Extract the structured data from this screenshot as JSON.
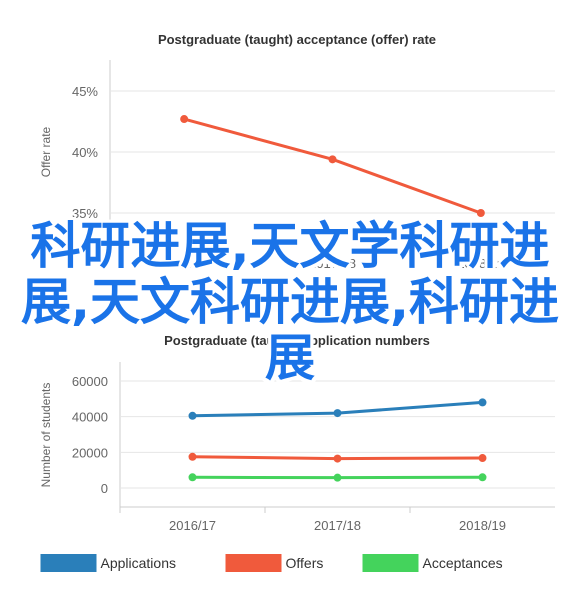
{
  "chart_data": [
    {
      "type": "line",
      "title": "Postgraduate (taught) acceptance (offer) rate",
      "ylabel": "Offer rate",
      "xlabel": "",
      "categories": [
        "2016/17",
        "2017/18",
        "2018/19"
      ],
      "yticks": [
        "35%",
        "40%",
        "45%"
      ],
      "ylim": [
        35,
        45
      ],
      "series": [
        {
          "name": "",
          "values": [
            42.7,
            39.4,
            35.0
          ],
          "color": "#f05a3c"
        }
      ]
    },
    {
      "type": "line",
      "title": "Postgraduate (taught) application numbers",
      "ylabel": "Number of students",
      "xlabel": "",
      "categories": [
        "2016/17",
        "2017/18",
        "2018/19"
      ],
      "yticks": [
        "0",
        "20000",
        "40000",
        "60000"
      ],
      "ylim": [
        0,
        60000
      ],
      "legend": "bottom",
      "series": [
        {
          "name": "Applications",
          "values": [
            40500,
            42000,
            48000
          ],
          "color": "#2a7fba"
        },
        {
          "name": "Offers",
          "values": [
            17500,
            16500,
            16800
          ],
          "color": "#f05a3c"
        },
        {
          "name": "Acceptances",
          "values": [
            6000,
            5800,
            6000
          ],
          "color": "#44d35c"
        }
      ]
    }
  ],
  "overlay_text": "科研进展,天文学科研进展,天文科研进展,科研进展"
}
